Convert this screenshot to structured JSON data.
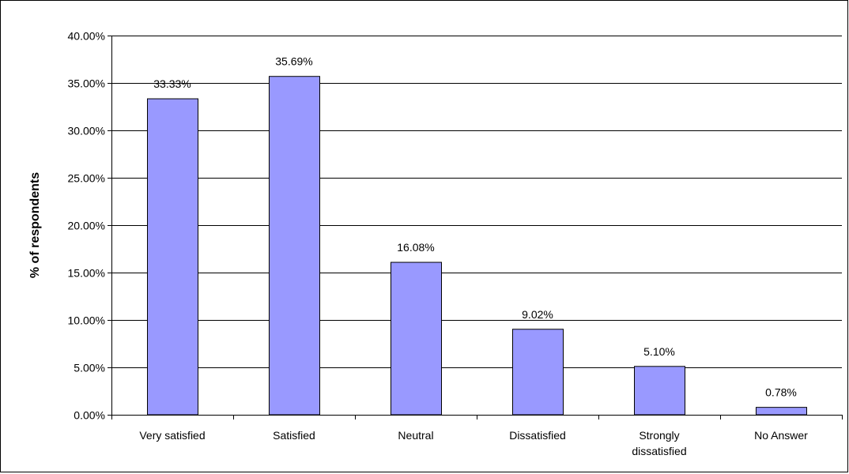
{
  "chart_data": {
    "type": "bar",
    "title": "",
    "xlabel": "",
    "ylabel": "% of respondents",
    "categories": [
      [
        "Very satisfied"
      ],
      [
        "Satisfied"
      ],
      [
        "Neutral"
      ],
      [
        "Dissatisfied"
      ],
      [
        "Strongly",
        "dissatisfied"
      ],
      [
        "No Answer"
      ]
    ],
    "values": [
      33.33,
      35.69,
      16.08,
      9.02,
      5.1,
      0.78
    ],
    "value_labels": [
      "33.33%",
      "35.69%",
      "16.08%",
      "9.02%",
      "5.10%",
      "0.78%"
    ],
    "yticks": [
      "0.00%",
      "5.00%",
      "10.00%",
      "15.00%",
      "20.00%",
      "25.00%",
      "30.00%",
      "35.00%",
      "40.00%"
    ],
    "ylim": [
      0,
      40
    ],
    "grid": true,
    "legend": "none",
    "colors": {
      "bar_fill": "#9999ff",
      "bar_stroke": "#000000",
      "grid": "#000000",
      "axis": "#000000"
    }
  }
}
